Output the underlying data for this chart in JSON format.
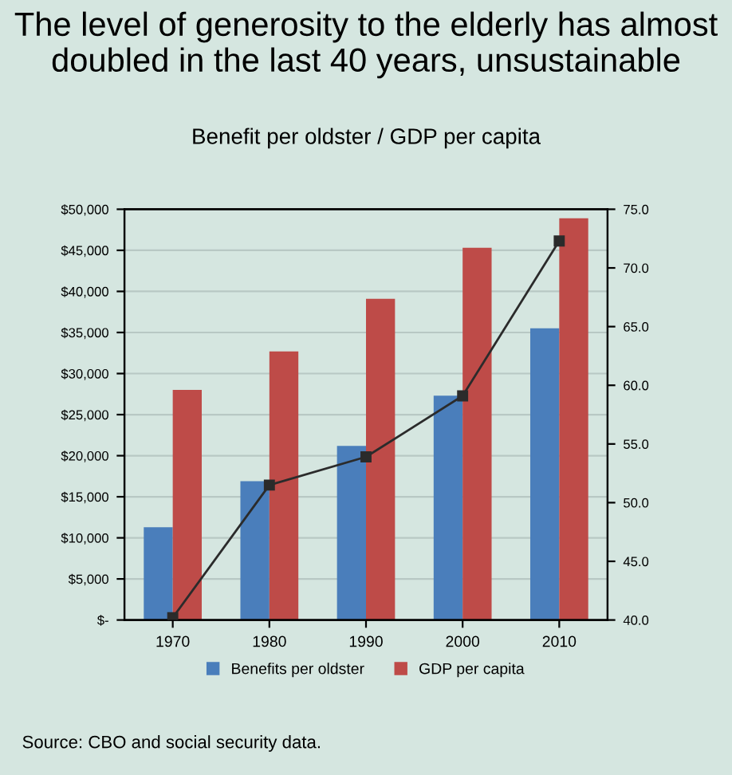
{
  "chart_data": {
    "type": "bar",
    "title": "The level of generosity to the elderly has almost doubled in the last 40 years, unsustainable",
    "subtitle": "Benefit per oldster / GDP per capita",
    "categories": [
      "1970",
      "1980",
      "1990",
      "2000",
      "2010"
    ],
    "series": [
      {
        "name": "Benefits per oldster",
        "color": "#4a7ebb",
        "values": [
          11300,
          16900,
          21200,
          27300,
          35500
        ]
      },
      {
        "name": "GDP per capita",
        "color": "#be4b48",
        "values": [
          28000,
          32700,
          39100,
          45300,
          48900
        ]
      },
      {
        "type": "line",
        "axis": "y2",
        "color": "#2b2b2b",
        "marker": "square",
        "line_style": "solid",
        "values": [
          40.2,
          51.5,
          53.9,
          59.1,
          72.3
        ]
      }
    ],
    "ylim": [
      0,
      50000
    ],
    "yticks": [
      {
        "value": 0,
        "label": "$-"
      },
      {
        "value": 5000,
        "label": "$5,000"
      },
      {
        "value": 10000,
        "label": "$10,000"
      },
      {
        "value": 15000,
        "label": "$15,000"
      },
      {
        "value": 20000,
        "label": "$20,000"
      },
      {
        "value": 25000,
        "label": "$25,000"
      },
      {
        "value": 30000,
        "label": "$30,000"
      },
      {
        "value": 35000,
        "label": "$35,000"
      },
      {
        "value": 40000,
        "label": "$40,000"
      },
      {
        "value": 45000,
        "label": "$45,000"
      },
      {
        "value": 50000,
        "label": "$50,000"
      }
    ],
    "y2lim": [
      40,
      75
    ],
    "y2ticks": [
      {
        "value": 40,
        "label": "40.0"
      },
      {
        "value": 45,
        "label": "45.0"
      },
      {
        "value": 50,
        "label": "50.0"
      },
      {
        "value": 55,
        "label": "55.0"
      },
      {
        "value": 60,
        "label": "60.0"
      },
      {
        "value": 65,
        "label": "65.0"
      },
      {
        "value": 70,
        "label": "70.0"
      },
      {
        "value": 75,
        "label": "75.0"
      }
    ],
    "grid": "y",
    "legend": "bottom",
    "annotations": [
      "Source: CBO and social security data."
    ]
  }
}
